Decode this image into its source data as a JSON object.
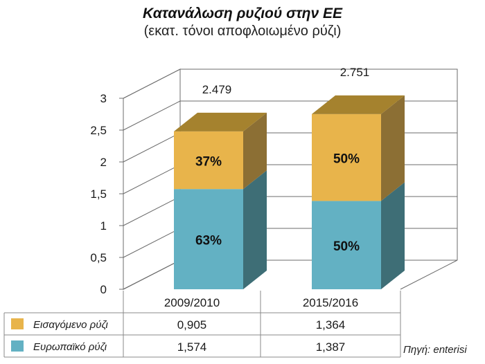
{
  "chart_data": {
    "type": "bar",
    "stacked": true,
    "three_d": true,
    "title": "Κατανάλωση ρυζιού στην ΕΕ",
    "subtitle": "(εκατ. τόνοι αποφλοιωμένο ρύζι)",
    "categories": [
      "2009/2010",
      "2015/2016"
    ],
    "totals": [
      "2.479",
      "2.751"
    ],
    "ylim": [
      0,
      3
    ],
    "yticks": [
      0,
      0.5,
      1,
      1.5,
      2,
      2.5,
      3
    ],
    "ytick_labels": [
      "0",
      "0,5",
      "1",
      "1,5",
      "2",
      "2,5",
      "3"
    ],
    "grid": true,
    "series": [
      {
        "name": "Ευρωπαϊκό ρύζι",
        "values": [
          1.574,
          1.387
        ],
        "value_labels": [
          "1,574",
          "1,387"
        ],
        "pct_labels": [
          "63%",
          "50%"
        ],
        "color_front": "#63b1c3",
        "color_side": "#3e6e76",
        "color_top": "#3e6e76"
      },
      {
        "name": "Εισαγόμενο ρύζι",
        "values": [
          0.905,
          1.364
        ],
        "value_labels": [
          "0,905",
          "1,364"
        ],
        "pct_labels": [
          "37%",
          "50%"
        ],
        "color_front": "#e8b44b",
        "color_side": "#8c6f34",
        "color_top": "#a5822e"
      }
    ],
    "table_row_order": [
      1,
      0
    ],
    "source": "Πηγή: enterisi"
  }
}
